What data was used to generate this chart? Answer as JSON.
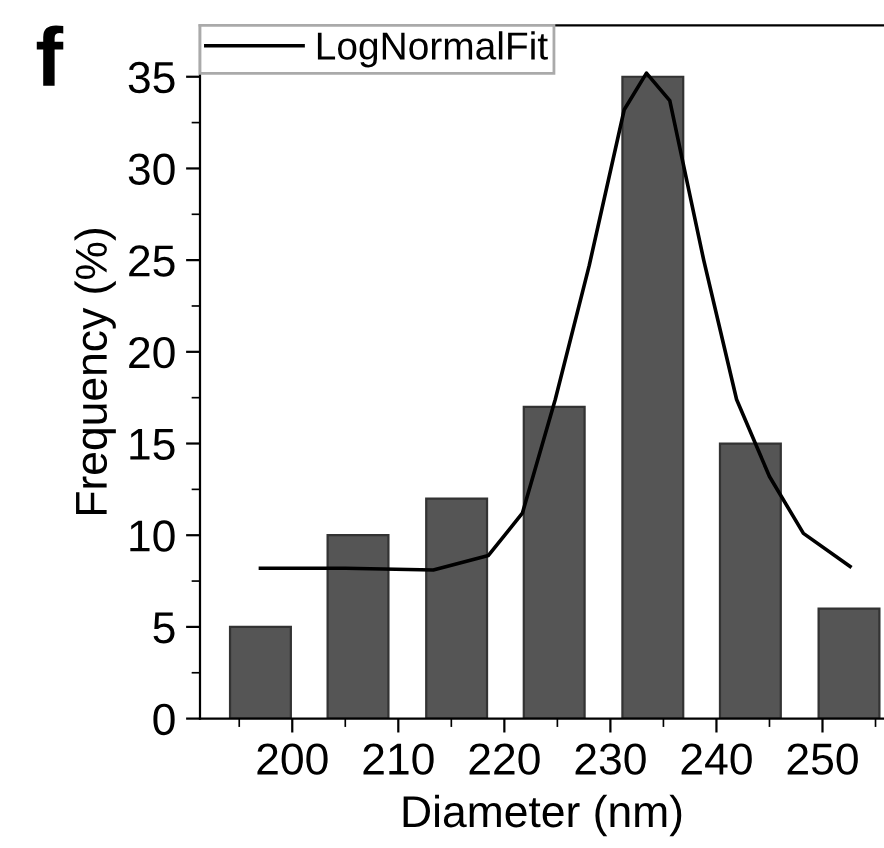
{
  "chart_data": {
    "type": "bar",
    "xlabel": "Diameter (nm)",
    "ylabel": "Frequency (%)",
    "annotations": [
      "f"
    ],
    "x": [
      197,
      206.2,
      215.5,
      224.7,
      234,
      243.2,
      252.5
    ],
    "series": [
      {
        "color": "#555555",
        "values": [
          5,
          10,
          12,
          17,
          35,
          15,
          6
        ]
      },
      {
        "type": "line",
        "name": "LogNormalFit",
        "color": "#000000",
        "x": [
          197,
          205,
          213.3,
          218.5,
          221.7,
          224.8,
          228.0,
          231.3,
          233.4,
          235.6,
          238.8,
          241.9,
          245,
          248.2,
          252.6
        ],
        "values": [
          8.2,
          8.2,
          8.1,
          8.9,
          11.2,
          17.4,
          24.7,
          33.2,
          35.2,
          33.7,
          25.0,
          17.4,
          13.2,
          10.1,
          8.3
        ]
      }
    ],
    "xlim": [
      191.3,
      255.8
    ],
    "ylim": [
      0,
      37.8
    ],
    "xticks": [
      {
        "value": 195,
        "label": null
      },
      200,
      {
        "value": 205,
        "label": null
      },
      210,
      {
        "value": 215,
        "label": null
      },
      220,
      {
        "value": 225,
        "label": null
      },
      230,
      {
        "value": 235,
        "label": null
      },
      240,
      {
        "value": 245,
        "label": null
      },
      250,
      {
        "value": 255,
        "label": null
      }
    ],
    "yticks": [
      0,
      {
        "value": 2.5,
        "label": null
      },
      5,
      {
        "value": 7.5,
        "label": null
      },
      10,
      {
        "value": 12.5,
        "label": null
      },
      15,
      {
        "value": 17.5,
        "label": null
      },
      20,
      {
        "value": 22.5,
        "label": null
      },
      25,
      {
        "value": 27.5,
        "label": null
      },
      30,
      {
        "value": 32.5,
        "label": null
      },
      35
    ],
    "grid": false,
    "legend": "top left",
    "marker": "none",
    "line_style": "solid"
  }
}
